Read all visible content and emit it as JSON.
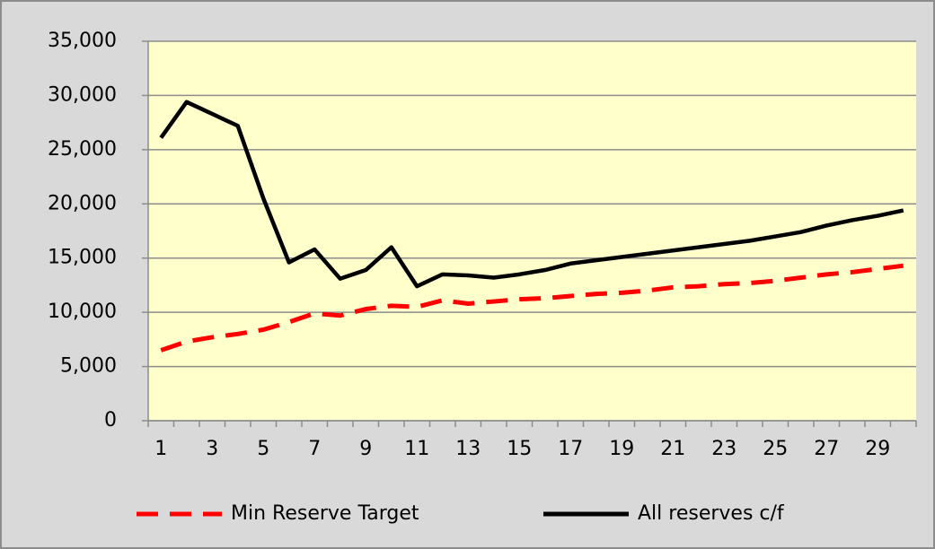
{
  "chart_data": {
    "type": "line",
    "categories": [
      "1",
      null,
      "3",
      null,
      "5",
      null,
      "7",
      null,
      "9",
      null,
      "11",
      null,
      "13",
      null,
      "15",
      null,
      "17",
      null,
      "19",
      null,
      "21",
      null,
      "23",
      null,
      "25",
      null,
      "27",
      null,
      "29",
      null
    ],
    "series": [
      {
        "name": "Min Reserve Target",
        "color": "#ff0000",
        "dash": true,
        "values": [
          6500,
          7300,
          7700,
          8000,
          8400,
          9100,
          9900,
          9700,
          10300,
          10600,
          10500,
          11100,
          10800,
          11000,
          11200,
          11300,
          11500,
          11700,
          11800,
          12000,
          12300,
          12400,
          12600,
          12700,
          12900,
          13200,
          13500,
          13700,
          14000,
          14300
        ]
      },
      {
        "name": "All reserves c/f",
        "color": "#000000",
        "dash": false,
        "values": [
          26100,
          29400,
          28300,
          27200,
          20500,
          14600,
          15800,
          13100,
          13900,
          16000,
          12400,
          13500,
          13400,
          13200,
          13500,
          13900,
          14500,
          14800,
          15100,
          15400,
          15700,
          16000,
          16300,
          16600,
          17000,
          17400,
          18000,
          18500,
          18900,
          19400
        ]
      }
    ],
    "ylim": [
      0,
      35000
    ],
    "yticks": [
      0,
      {
        "value": 5000,
        "label": "5,000"
      },
      {
        "value": 10000,
        "label": "10,000"
      },
      {
        "value": 15000,
        "label": "15,000"
      },
      {
        "value": 20000,
        "label": "20,000"
      },
      {
        "value": 25000,
        "label": "25,000"
      },
      {
        "value": 30000,
        "label": "30,000"
      },
      {
        "value": 35000,
        "label": "35,000"
      }
    ],
    "grid": true,
    "legend": "bottom"
  }
}
